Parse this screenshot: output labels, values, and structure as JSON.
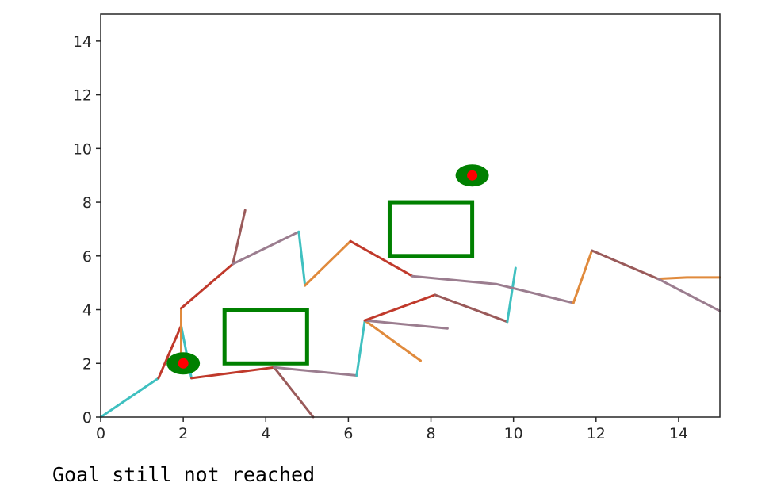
{
  "output": {
    "text": "Goal still not reached"
  },
  "chart_data": {
    "type": "line",
    "title": "",
    "xlabel": "",
    "ylabel": "",
    "xlim": [
      0,
      15
    ],
    "ylim": [
      0,
      15
    ],
    "grid": false,
    "legend": "none",
    "x_ticks": [
      0,
      2,
      4,
      6,
      8,
      10,
      12,
      14
    ],
    "y_ticks": [
      0,
      2,
      4,
      6,
      8,
      10,
      12,
      14
    ],
    "x_tick_labels": [
      "0",
      "2",
      "4",
      "6",
      "8",
      "10",
      "12",
      "14"
    ],
    "y_tick_labels": [
      "0",
      "2",
      "4",
      "6",
      "8",
      "10",
      "12",
      "14"
    ],
    "colors": {
      "cyan": "#3fc0c0",
      "red": "#c0392b",
      "orange": "#e08a3c",
      "mauve": "#9b7d8f",
      "brown": "#9a5a5a",
      "obstacle": "#008000",
      "marker_fill": "#008000",
      "marker_dot": "#ff0000",
      "axes": "#262626"
    },
    "obstacles": [
      {
        "x": 3,
        "y": 2,
        "width": 2,
        "height": 2
      },
      {
        "x": 7,
        "y": 6,
        "width": 2,
        "height": 2
      }
    ],
    "markers": [
      {
        "x": 2,
        "y": 2,
        "name": "start"
      },
      {
        "x": 9,
        "y": 9,
        "name": "goal"
      }
    ],
    "segments": [
      {
        "color": "cyan",
        "points": [
          [
            0,
            0
          ],
          [
            1.4,
            1.45
          ]
        ]
      },
      {
        "color": "red",
        "points": [
          [
            1.4,
            1.45
          ],
          [
            1.95,
            3.4
          ]
        ]
      },
      {
        "color": "cyan",
        "points": [
          [
            1.95,
            3.4
          ],
          [
            2.2,
            1.45
          ]
        ]
      },
      {
        "color": "red",
        "points": [
          [
            2.2,
            1.45
          ],
          [
            4.2,
            1.85
          ]
        ]
      },
      {
        "color": "brown",
        "points": [
          [
            4.2,
            1.85
          ],
          [
            5.15,
            0
          ]
        ]
      },
      {
        "color": "mauve",
        "points": [
          [
            4.2,
            1.85
          ],
          [
            6.2,
            1.55
          ]
        ]
      },
      {
        "color": "cyan",
        "points": [
          [
            6.2,
            1.55
          ],
          [
            6.4,
            3.6
          ]
        ]
      },
      {
        "color": "orange",
        "points": [
          [
            6.4,
            3.6
          ],
          [
            7.75,
            2.1
          ]
        ]
      },
      {
        "color": "mauve",
        "points": [
          [
            6.4,
            3.6
          ],
          [
            8.4,
            3.3
          ]
        ]
      },
      {
        "color": "red",
        "points": [
          [
            6.4,
            3.6
          ],
          [
            8.1,
            4.55
          ]
        ]
      },
      {
        "color": "brown",
        "points": [
          [
            8.1,
            4.55
          ],
          [
            9.85,
            3.55
          ]
        ]
      },
      {
        "color": "cyan",
        "points": [
          [
            9.85,
            3.55
          ],
          [
            10.05,
            5.55
          ]
        ]
      },
      {
        "color": "orange",
        "points": [
          [
            1.95,
            2.0
          ],
          [
            1.95,
            4.05
          ]
        ]
      },
      {
        "color": "red",
        "points": [
          [
            1.95,
            4.05
          ],
          [
            3.2,
            5.7
          ]
        ]
      },
      {
        "color": "brown",
        "points": [
          [
            3.2,
            5.7
          ],
          [
            3.5,
            7.7
          ]
        ]
      },
      {
        "color": "mauve",
        "points": [
          [
            3.2,
            5.7
          ],
          [
            4.8,
            6.9
          ]
        ]
      },
      {
        "color": "cyan",
        "points": [
          [
            4.8,
            6.9
          ],
          [
            4.95,
            4.9
          ]
        ]
      },
      {
        "color": "orange",
        "points": [
          [
            4.95,
            4.9
          ],
          [
            6.05,
            6.55
          ]
        ]
      },
      {
        "color": "red",
        "points": [
          [
            6.05,
            6.55
          ],
          [
            7.55,
            5.25
          ]
        ]
      },
      {
        "color": "mauve",
        "points": [
          [
            7.55,
            5.25
          ],
          [
            9.6,
            4.95
          ],
          [
            11.45,
            4.25
          ]
        ]
      },
      {
        "color": "orange",
        "points": [
          [
            11.45,
            4.25
          ],
          [
            11.9,
            6.2
          ]
        ]
      },
      {
        "color": "brown",
        "points": [
          [
            11.9,
            6.2
          ],
          [
            13.5,
            5.15
          ]
        ]
      },
      {
        "color": "orange",
        "points": [
          [
            13.5,
            5.15
          ],
          [
            14.2,
            5.2
          ],
          [
            15.0,
            5.2
          ]
        ]
      },
      {
        "color": "mauve",
        "points": [
          [
            13.5,
            5.15
          ],
          [
            15.0,
            3.95
          ]
        ]
      }
    ]
  }
}
